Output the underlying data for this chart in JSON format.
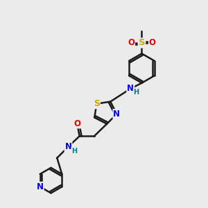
{
  "bg_color": "#ebebeb",
  "line_color": "#1a1a1a",
  "bond_width": 1.8,
  "atom_colors": {
    "N": "#0000ee",
    "O": "#ee0000",
    "S_th": "#ccaa00",
    "S_so": "#ccaa00",
    "H": "#008080",
    "C": "#1a1a1a"
  },
  "font_size": 8.5
}
